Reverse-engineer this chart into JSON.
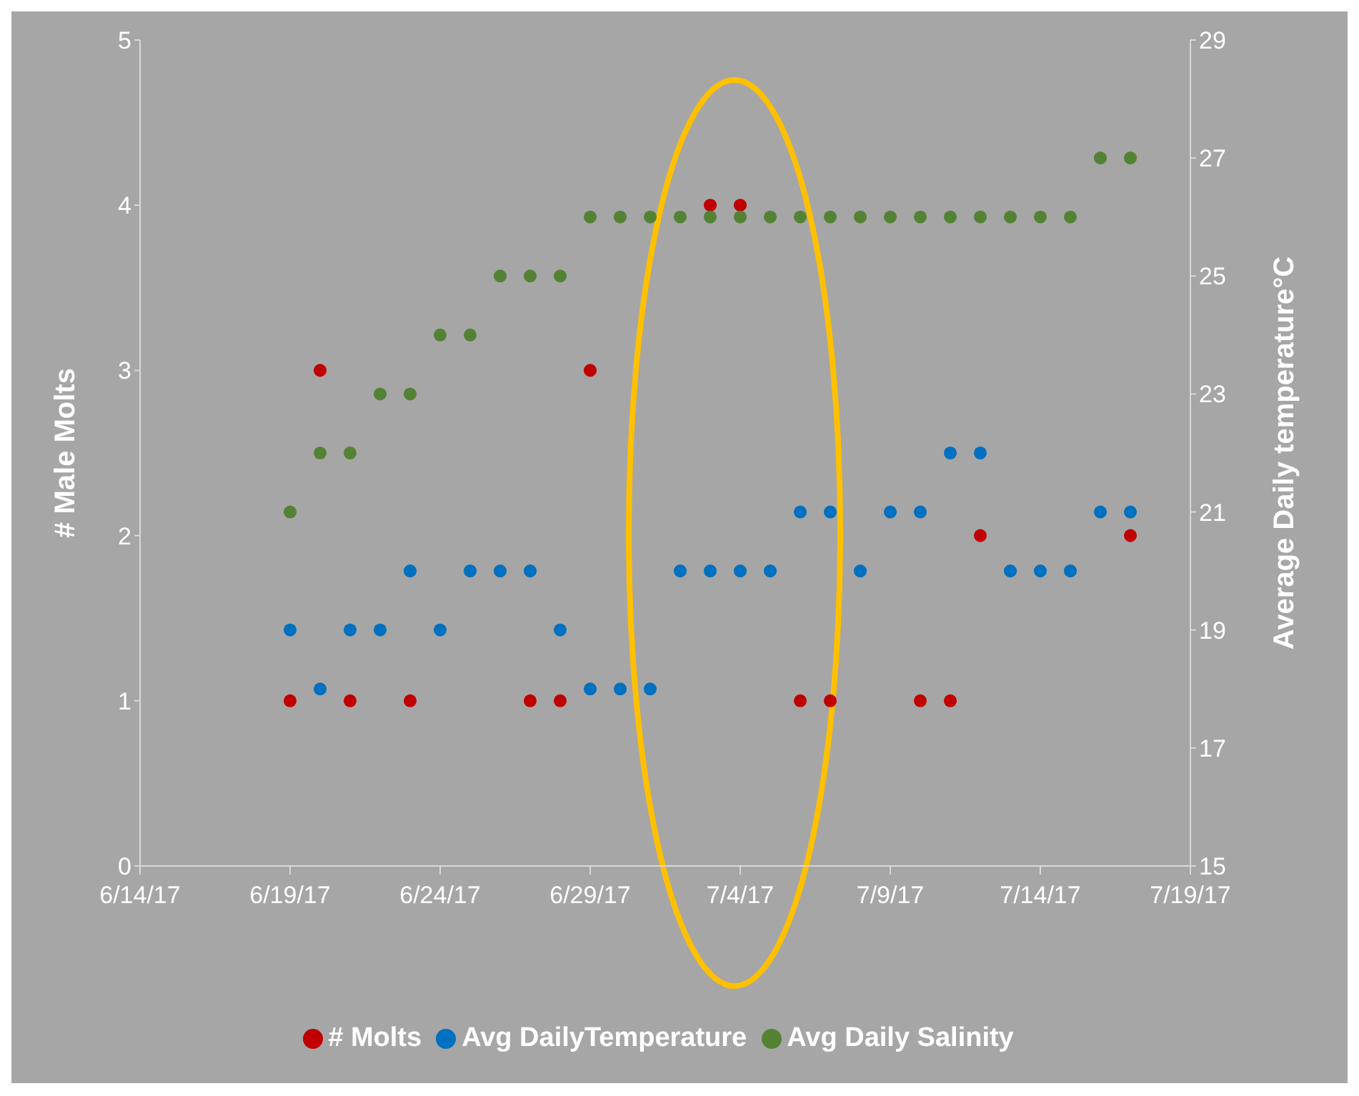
{
  "chart_data": {
    "type": "scatter",
    "ylabel": "# Male Molts",
    "y2label": "Average Daily temperature°C",
    "xlim": [
      "--06-14",
      "--07-19"
    ],
    "xticks": [
      {
        "value": "--06-14",
        "label": "6/14/17"
      },
      {
        "value": "--06-19",
        "label": "6/19/17"
      },
      {
        "value": "--06-24",
        "label": "6/24/17"
      },
      {
        "value": "--06-29",
        "label": "6/29/17"
      },
      {
        "value": "--07-04",
        "label": "7/4/17"
      },
      {
        "value": "--07-09",
        "label": "7/9/17"
      },
      {
        "value": "--07-14",
        "label": "7/14/17"
      },
      {
        "value": "--07-19",
        "label": "7/19/17"
      }
    ],
    "ylim": [
      0,
      5
    ],
    "yticks": [
      0,
      1,
      2,
      3,
      4,
      5
    ],
    "y2lim": [
      15,
      29
    ],
    "y2ticks": [
      15,
      17,
      19,
      21,
      23,
      25,
      27,
      29
    ],
    "grid": false,
    "legend": "bottom",
    "marker": "circle",
    "series": [
      {
        "name": "# Molts",
        "color": "#c00000",
        "x": [
          "--06-19",
          "--06-20",
          "--06-21",
          "--06-23",
          "--06-27",
          "--06-28",
          "--06-29",
          "--07-03",
          "--07-04",
          "--07-06",
          "--07-07",
          "--07-10",
          "--07-11",
          "--07-12",
          "--07-17"
        ],
        "values": [
          1,
          3,
          1,
          1,
          1,
          1,
          3,
          4,
          4,
          1,
          1,
          1,
          1,
          2,
          2
        ]
      },
      {
        "name": "Avg DailyTemperature",
        "color": "#0070c0",
        "axis": "y2",
        "x": [
          "--06-19",
          "--06-20",
          "--06-21",
          "--06-22",
          "--06-23",
          "--06-24",
          "--06-25",
          "--06-26",
          "--06-27",
          "--06-28",
          "--06-29",
          "--06-30",
          "--07-01",
          "--07-02",
          "--07-03",
          "--07-04",
          "--07-05",
          "--07-06",
          "--07-07",
          "--07-08",
          "--07-09",
          "--07-10",
          "--07-11",
          "--07-12",
          "--07-13",
          "--07-14",
          "--07-15",
          "--07-16",
          "--07-17"
        ],
        "values": [
          19,
          18,
          19,
          19,
          20,
          19,
          20,
          20,
          20,
          19,
          18,
          18,
          18,
          20,
          20,
          20,
          20,
          21,
          21,
          20,
          21,
          21,
          22,
          22,
          20,
          20,
          20,
          21,
          21
        ]
      },
      {
        "name": "Avg Daily Salinity",
        "color": "#548235",
        "axis": "y2",
        "x": [
          "--06-19",
          "--06-20",
          "--06-21",
          "--06-22",
          "--06-23",
          "--06-24",
          "--06-25",
          "--06-26",
          "--06-27",
          "--06-28",
          "--06-29",
          "--06-30",
          "--07-01",
          "--07-02",
          "--07-03",
          "--07-04",
          "--07-05",
          "--07-06",
          "--07-07",
          "--07-08",
          "--07-09",
          "--07-10",
          "--07-11",
          "--07-12",
          "--07-13",
          "--07-14",
          "--07-15",
          "--07-16",
          "--07-17"
        ],
        "values": [
          21,
          22,
          22,
          23,
          23,
          24,
          24,
          25,
          25,
          25,
          26,
          26,
          26,
          26,
          26,
          26,
          26,
          26,
          26,
          26,
          26,
          26,
          26,
          26,
          26,
          26,
          26,
          27,
          27
        ]
      }
    ]
  }
}
